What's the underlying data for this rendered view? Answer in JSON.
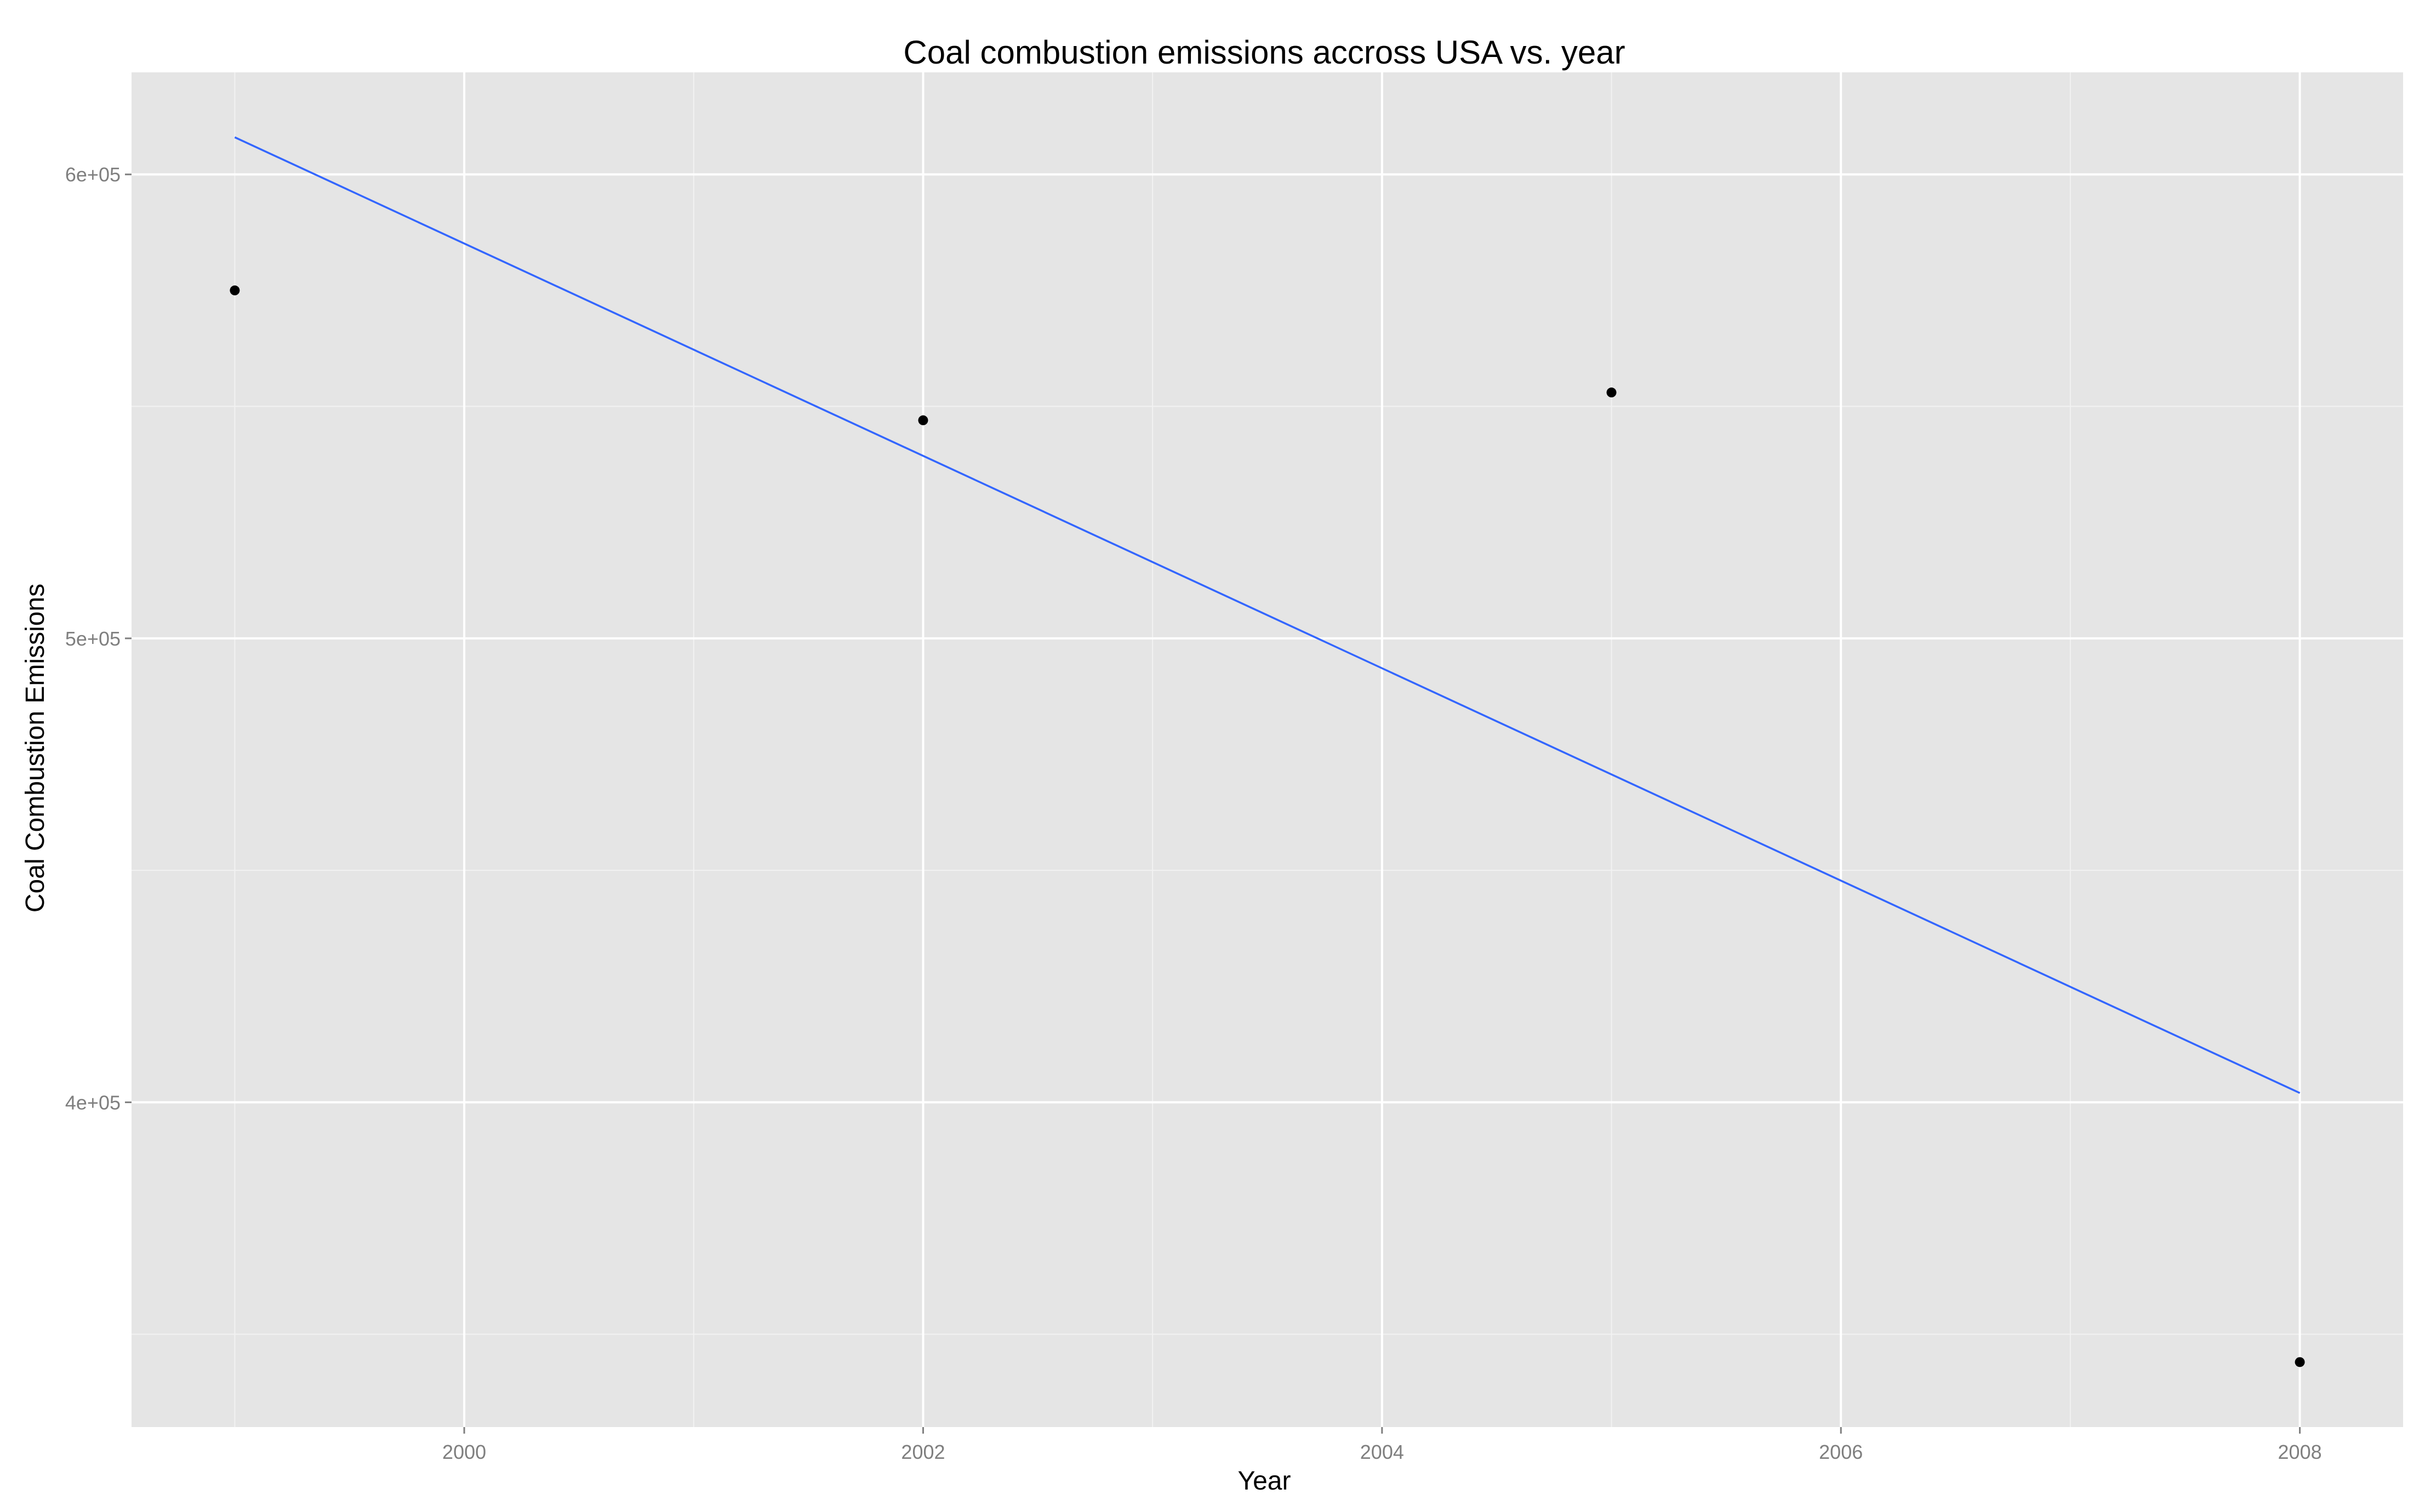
{
  "chart_data": {
    "type": "scatter",
    "title": "Coal combustion emissions accross USA vs. year",
    "xlabel": "Year",
    "ylabel": "Coal Combustion Emissions",
    "xlim": [
      1998.55,
      2008.45
    ],
    "ylim": [
      330000,
      622000
    ],
    "x_ticks": [
      2000,
      2002,
      2004,
      2006,
      2008
    ],
    "x_tick_labels": [
      "2000",
      "2002",
      "2004",
      "2006",
      "2008"
    ],
    "y_ticks": [
      400000,
      500000,
      600000
    ],
    "y_tick_labels": [
      "4e+05",
      "5e+05",
      "6e+05"
    ],
    "grid": true,
    "points": [
      {
        "x": 1999,
        "y": 575000
      },
      {
        "x": 2002,
        "y": 547000
      },
      {
        "x": 2005,
        "y": 553000
      },
      {
        "x": 2008,
        "y": 344000
      }
    ],
    "trend_line": {
      "x": [
        1999,
        2008
      ],
      "y": [
        608000,
        402000
      ]
    },
    "colors": {
      "panel_background": "#e5e5e5",
      "grid_major": "#ffffff",
      "grid_minor": "#f2f2f2",
      "point": "#000000",
      "trend_line": "#3366ff",
      "tick_label": "#7f7f7f",
      "text": "#000000"
    }
  }
}
